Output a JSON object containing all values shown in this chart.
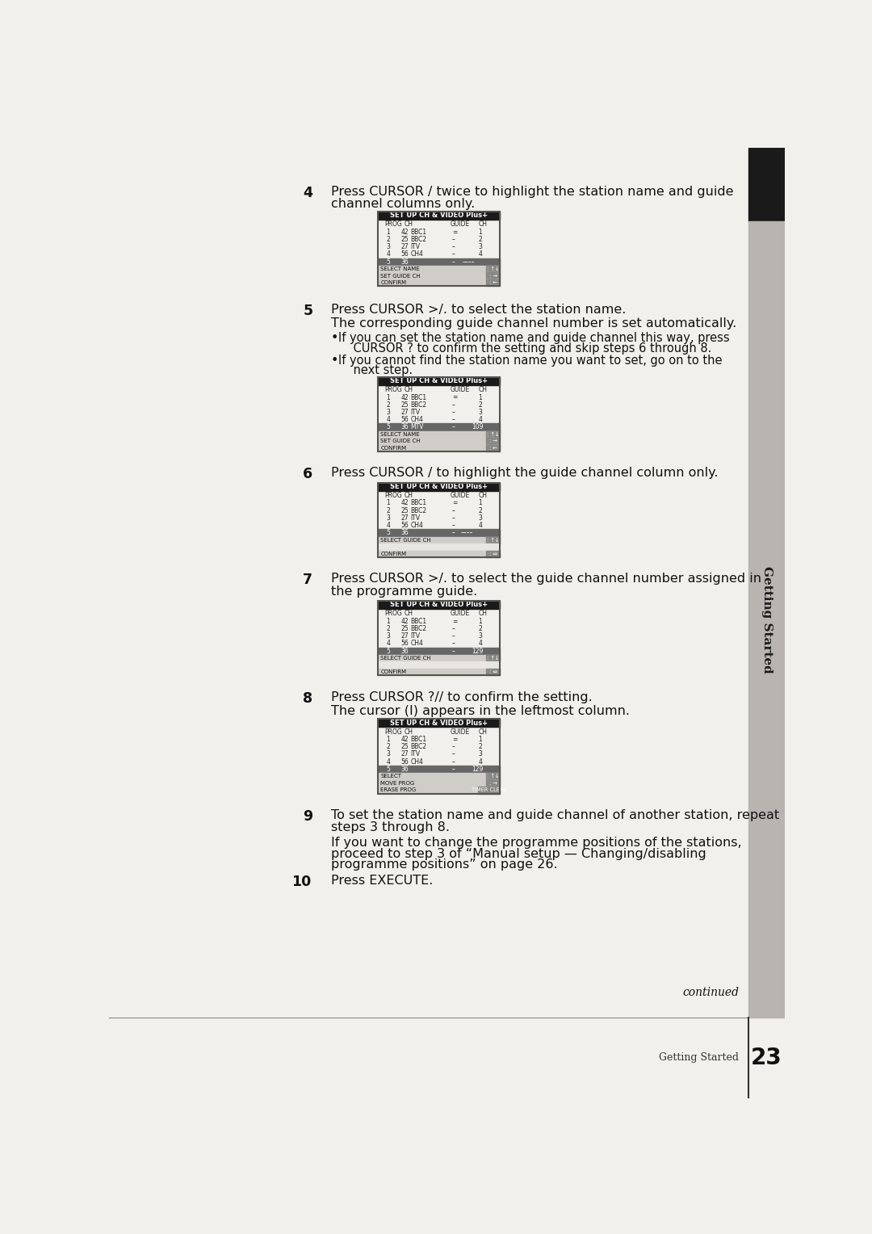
{
  "page_bg": "#f2f0ec",
  "content_bg": "#f2f0ec",
  "sidebar_dark": "#1a1a1a",
  "sidebar_gray": "#b8b4b0",
  "text_color": "#111111",
  "screen_header_bg": "#1a1a1a",
  "screen_header_fg": "#ffffff",
  "screen_row_bg": "#e8e6e2",
  "screen_hl_bg": "#666666",
  "screen_hl_fg": "#ffffff",
  "screen_bar_bg": "#d0ccc8",
  "screen_bar_icon_bg": "#888884",
  "screen_border": "#555550",
  "step4_text1": "Press CURSOR / twice to highlight the station name and guide",
  "step4_text2": "channel columns only.",
  "step5_text1": "Press CURSOR >/. to select the station name.",
  "step5_sub1": "The corresponding guide channel number is set automatically.",
  "step5_b1a": "If you can set the station name and guide channel this way, press",
  "step5_b1b": "    CURSOR ? to confirm the setting and skip steps 6 through 8.",
  "step5_b2a": "If you cannot find the station name you want to set, go on to the",
  "step5_b2b": "    next step.",
  "step6_text1": "Press CURSOR / to highlight the guide channel column only.",
  "step7_text1": "Press CURSOR >/. to select the guide channel number assigned in",
  "step7_text2": "the programme guide.",
  "step8_text1": "Press CURSOR ?// to confirm the setting.",
  "step8_sub1": "The cursor (I) appears in the leftmost column.",
  "step9_text1": "To set the station name and guide channel of another station, repeat",
  "step9_text2": "steps 3 through 8.",
  "step9_sub1": "If you want to change the programme positions of the stations,",
  "step9_sub2": "proceed to step 3 of “Manual setup — Changing/disabling",
  "step9_sub3": "programme positions” on page 26.",
  "step10_text": "Press EXECUTE.",
  "continued_text": "continued",
  "page_number": "23",
  "footer_label": "Getting Started"
}
